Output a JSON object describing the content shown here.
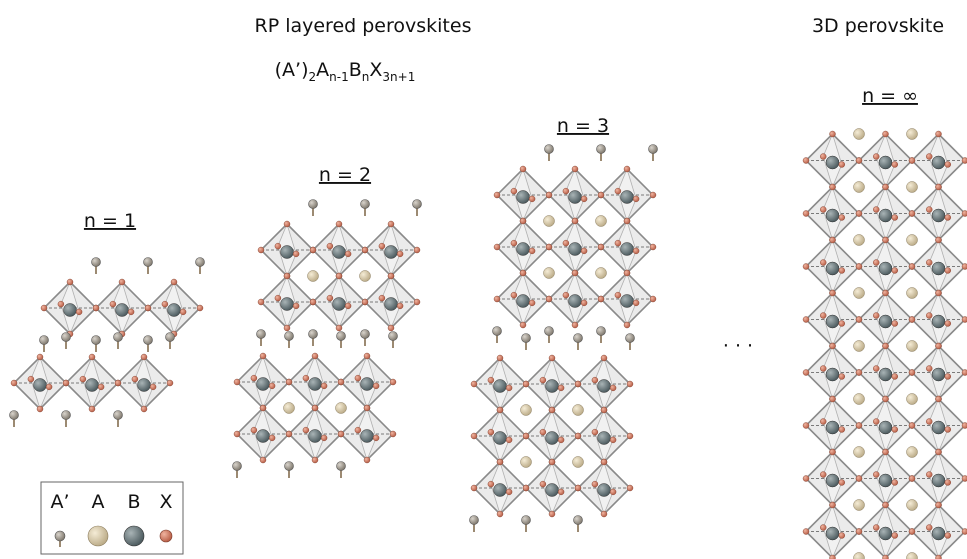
{
  "header": {
    "title": "RP layered perovskites",
    "formula": [
      "(A’)",
      "2",
      "A",
      "n-1",
      "B",
      "n",
      "X",
      "3n+1"
    ],
    "title_3d": "3D perovskite"
  },
  "structures": [
    {
      "label": "n = 1"
    },
    {
      "label": "n = 2"
    },
    {
      "label": "n = 3"
    },
    {
      "label": "n = ∞"
    }
  ],
  "ellipsis": "· · ·",
  "legend": {
    "labels": [
      "A’",
      "A",
      "B",
      "X"
    ]
  }
}
